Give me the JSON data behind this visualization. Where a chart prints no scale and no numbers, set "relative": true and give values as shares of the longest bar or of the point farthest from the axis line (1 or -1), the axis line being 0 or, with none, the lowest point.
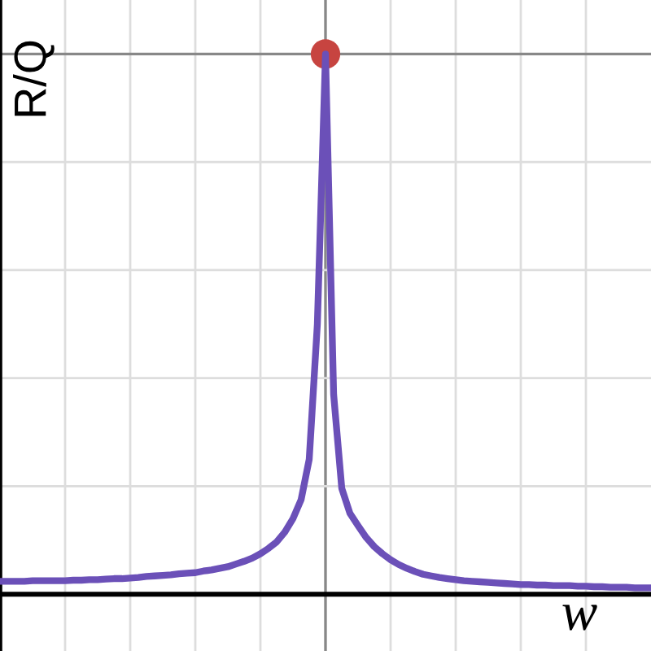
{
  "chart_data": {
    "type": "line",
    "relative": true,
    "xlabel": "w",
    "ylabel": "R/Q",
    "grid": true,
    "legend": false,
    "categories": [
      null,
      null,
      null,
      null,
      null,
      null,
      null,
      null,
      null,
      null,
      null,
      null,
      null,
      null,
      null,
      null,
      null,
      null,
      null,
      null,
      null,
      null,
      null,
      null,
      null,
      null,
      null,
      null,
      null,
      null,
      null,
      null,
      null,
      null,
      null,
      null,
      null,
      null,
      null,
      null,
      null,
      null,
      null,
      null,
      null,
      null,
      null,
      null,
      null,
      null,
      null,
      null,
      null,
      null,
      null,
      null,
      null,
      null,
      null,
      null,
      null,
      null,
      null,
      null,
      null,
      null,
      null,
      null,
      null,
      null,
      null,
      null,
      null,
      null,
      null,
      null,
      null,
      null,
      null,
      null,
      null
    ],
    "series": [
      {
        "color": "#6b50b8",
        "marker": "none",
        "line_style": "solid",
        "values": [
          0.024,
          0.024,
          0.024,
          0.024,
          0.025,
          0.025,
          0.025,
          0.025,
          0.025,
          0.026,
          0.026,
          0.027,
          0.027,
          0.028,
          0.029,
          0.029,
          0.03,
          0.031,
          0.033,
          0.034,
          0.035,
          0.036,
          0.038,
          0.039,
          0.04,
          0.043,
          0.045,
          0.048,
          0.051,
          0.056,
          0.061,
          0.067,
          0.075,
          0.085,
          0.097,
          0.115,
          0.14,
          0.175,
          0.25,
          0.5,
          1,
          0.37,
          0.196,
          0.15,
          0.127,
          0.105,
          0.088,
          0.075,
          0.064,
          0.055,
          0.048,
          0.042,
          0.037,
          0.034,
          0.031,
          0.029,
          0.027,
          0.025,
          0.024,
          0.023,
          0.022,
          0.021,
          0.02,
          0.019,
          0.018,
          0.018,
          0.017,
          0.017,
          0.016,
          0.016,
          0.016,
          0.015,
          0.015,
          0.014,
          0.014,
          0.013,
          0.013,
          0.013,
          0.012,
          0.012,
          0.012
        ]
      }
    ]
  }
}
